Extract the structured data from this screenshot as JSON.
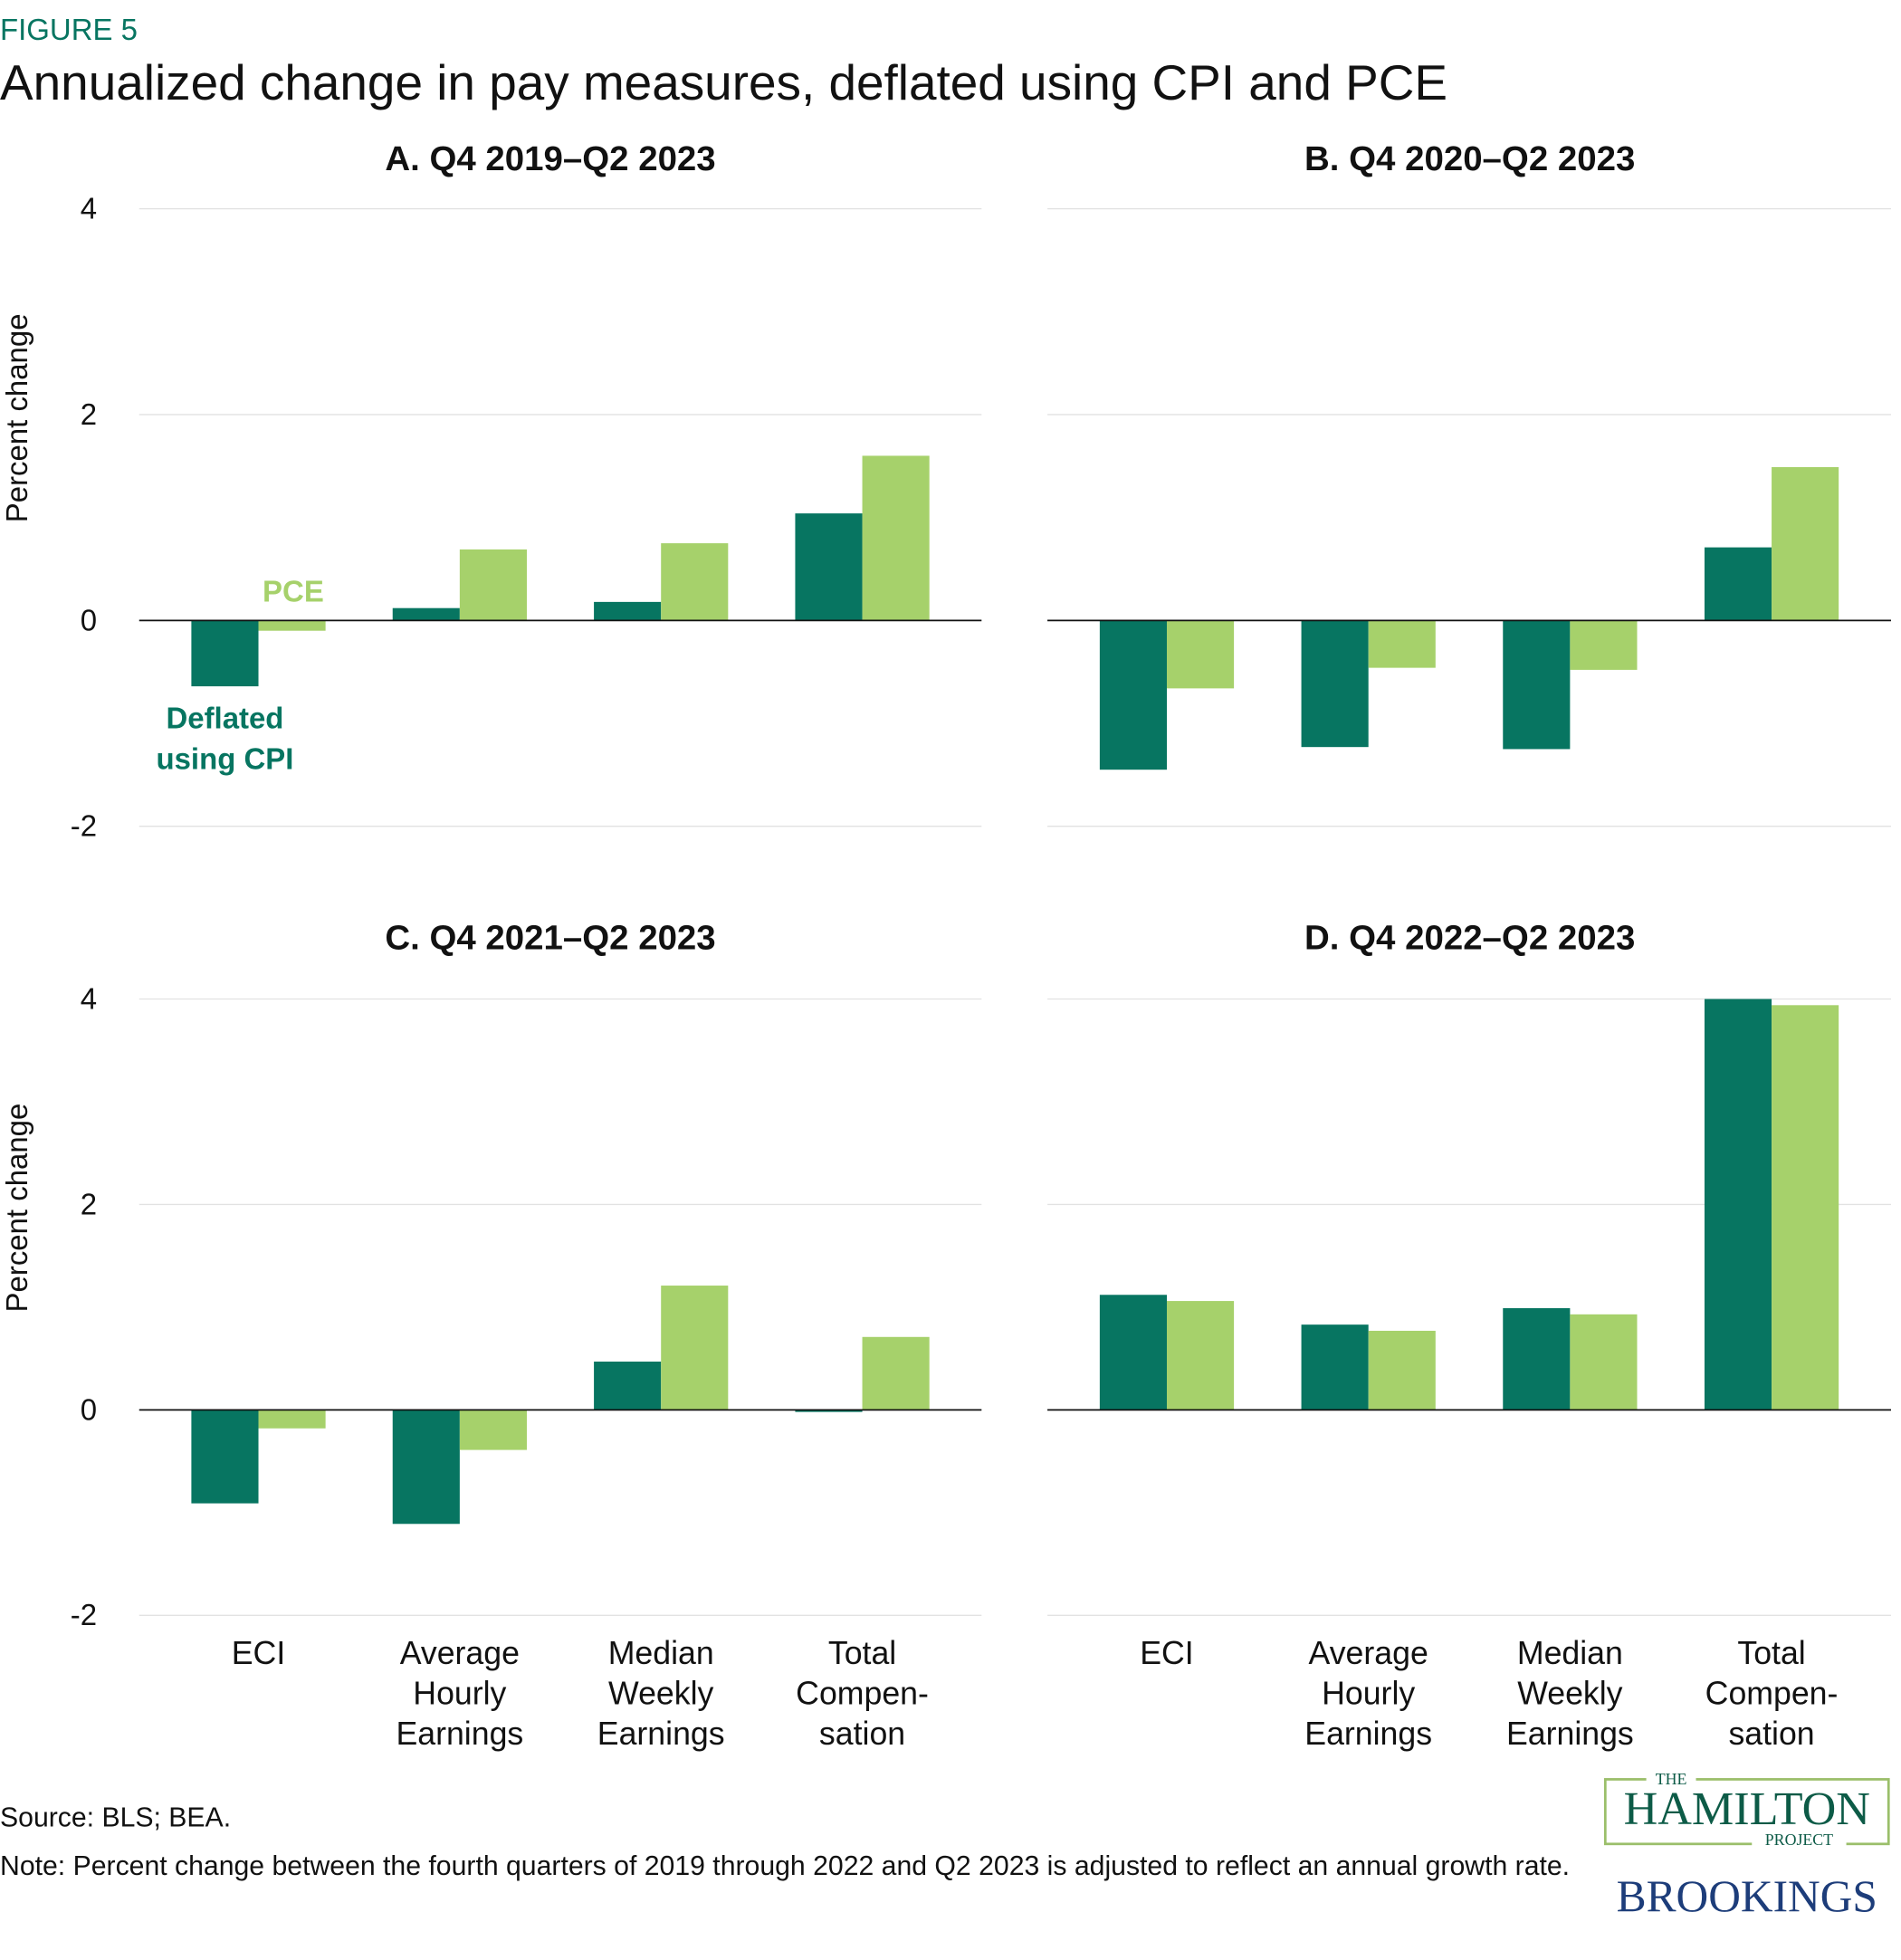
{
  "figure_label": "FIGURE 5",
  "title": "Annualized change in pay measures, deflated using CPI and PCE",
  "chart_data": [
    {
      "type": "bar",
      "title": "A. Q4 2019–Q2 2023",
      "ylabel": "Percent change",
      "categories": [
        null,
        null,
        null,
        null
      ],
      "series": [
        {
          "name": "Deflated using CPI",
          "color": "#077561",
          "values": [
            -0.64,
            0.12,
            0.18,
            1.04
          ]
        },
        {
          "name": "PCE",
          "color": "#a6d16b",
          "values": [
            -0.1,
            0.69,
            0.75,
            1.6
          ]
        }
      ],
      "ylim": [
        -2,
        4
      ],
      "yticks": [
        -2,
        0,
        2,
        4
      ],
      "grid": true
    },
    {
      "type": "bar",
      "title": "B. Q4 2020–Q2 2023",
      "categories": [
        null,
        null,
        null,
        null
      ],
      "series": [
        {
          "color": "#077561",
          "values": [
            -1.45,
            -1.23,
            -1.25,
            0.71
          ]
        },
        {
          "color": "#a6d16b",
          "values": [
            -0.66,
            -0.46,
            -0.48,
            1.49
          ]
        }
      ],
      "ylim": [
        -2,
        4
      ],
      "grid": true
    },
    {
      "type": "bar",
      "title": "C. Q4 2021–Q2 2023",
      "ylabel": "Percent change",
      "categories": [
        [
          "ECI"
        ],
        [
          "Average",
          "Hourly",
          "Earnings"
        ],
        [
          "Median",
          "Weekly",
          "Earnings"
        ],
        [
          "Total",
          "Compen-",
          "sation"
        ]
      ],
      "series": [
        {
          "color": "#077561",
          "values": [
            -0.91,
            -1.11,
            0.47,
            -0.02
          ]
        },
        {
          "color": "#a6d16b",
          "values": [
            -0.18,
            -0.39,
            1.21,
            0.71
          ]
        }
      ],
      "ylim": [
        -2,
        4
      ],
      "yticks": [
        -2,
        0,
        2,
        4
      ],
      "grid": true
    },
    {
      "type": "bar",
      "title": "D. Q4 2022–Q2 2023",
      "categories": [
        [
          "ECI"
        ],
        [
          "Average",
          "Hourly",
          "Earnings"
        ],
        [
          "Median",
          "Weekly",
          "Earnings"
        ],
        [
          "Total",
          "Compen-",
          "sation"
        ]
      ],
      "series": [
        {
          "color": "#077561",
          "values": [
            1.12,
            0.83,
            0.99,
            4.0
          ]
        },
        {
          "color": "#a6d16b",
          "values": [
            1.06,
            0.77,
            0.93,
            3.94
          ]
        }
      ],
      "ylim": [
        -2,
        4
      ],
      "grid": true
    }
  ],
  "source": "Source: BLS; BEA.",
  "note": "Note: Percent change between the fourth quarters of 2019 through 2022 and Q2 2023 is adjusted to reflect an annual growth rate.",
  "logo": {
    "the": "THE",
    "hamilton": "HAMILTON",
    "project": "PROJECT",
    "brookings": "BROOKINGS"
  }
}
